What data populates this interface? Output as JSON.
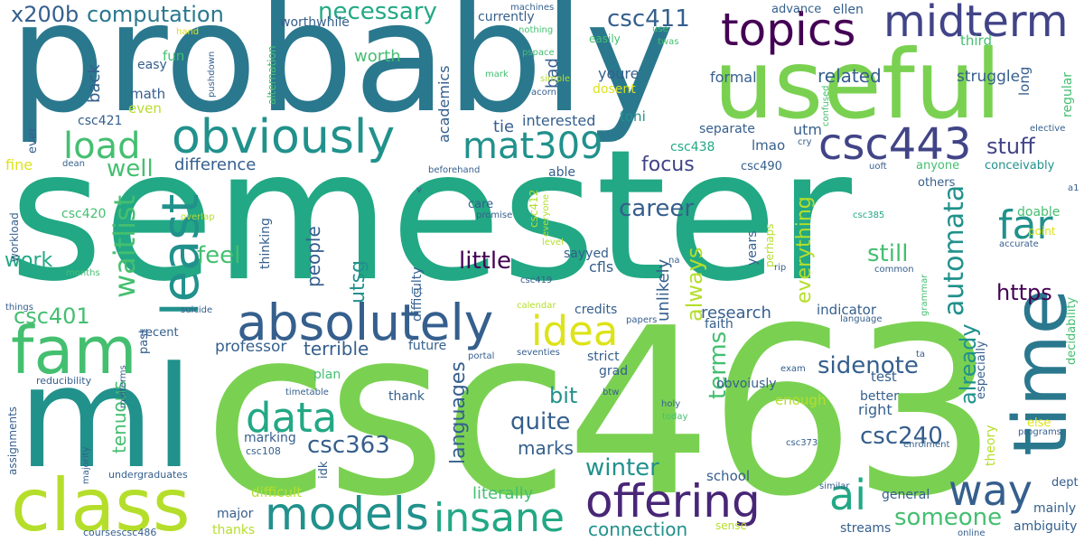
{
  "palette": {
    "yellow": "#dde318",
    "lime": "#b5de2b",
    "green": "#7ad151",
    "mint": "#44bf70",
    "teal": "#22a884",
    "cyan": "#21918c",
    "blue": "#2a788e",
    "slate": "#355f8d",
    "indigo": "#414487",
    "purple": "#482677",
    "violet": "#440154"
  },
  "words": {
    "semester": "semester",
    "csc463": "csc463",
    "probably": "probably",
    "useful": "useful",
    "ml": "ml",
    "fam": "fam",
    "class": "class",
    "time": "time",
    "absolutely": "absolutely",
    "obviously": "obviously",
    "topics": "topics",
    "midterm": "midterm",
    "csc443": "csc443",
    "mat309": "mat309",
    "models": "models",
    "insane": "insane",
    "offering": "offering",
    "least": "least",
    "data": "data",
    "idea": "idea",
    "ai": "ai",
    "way": "way",
    "far": "far",
    "load": "load",
    "computation": "computation",
    "necessary": "necessary",
    "x200b": "x200b",
    "csc411": "csc411",
    "waitlist": "waitlist",
    "automata": "automata",
    "csc401": "csc401",
    "csc363": "csc363",
    "csc240": "csc240",
    "sidenote": "sidenote",
    "winter": "winter",
    "someone": "someone",
    "connection": "connection",
    "little": "little",
    "career": "career",
    "https": "https",
    "well": "well",
    "feel": "feel",
    "still": "still",
    "stuff": "stuff",
    "terms": "terms",
    "always": "always",
    "quite": "quite",
    "bit": "bit",
    "marks": "marks",
    "focus": "focus",
    "difference": "difference",
    "related": "related",
    "work": "work",
    "utsg": "utsg",
    "languages": "languages",
    "already": "already",
    "literally": "literally",
    "people": "people",
    "tenuous": "tenuous",
    "everything": "everything",
    "unlikely": "unlikely",
    "research": "research",
    "terrible": "terrible",
    "professor": "professor",
    "struggle": "struggle",
    "worth": "worth",
    "back": "back",
    "interested": "interested",
    "toni": "toni",
    "tie": "tie",
    "academics": "academics",
    "bad": "bad",
    "youre": "youre",
    "dosent": "dosent",
    "formal": "formal",
    "currently": "currently",
    "worthwhile": "worthwhile",
    "advance": "advance",
    "ellen": "ellen",
    "third": "third",
    "long": "long",
    "regular": "regular",
    "fun": "fun",
    "easy": "easy",
    "math": "math",
    "even": "even",
    "csc421": "csc421",
    "ever": "ever",
    "fine": "fine",
    "dean": "dean",
    "hand": "hand",
    "pushdown": "pushdown",
    "alternation": "alternation",
    "machines": "machines",
    "nothing": "nothing",
    "pspace": "pspace",
    "mark": "mark",
    "simple": "simple",
    "acorn": "acorn",
    "easily": "easily",
    "use": "use",
    "twas": "twas",
    "confused": "confused",
    "elective": "elective",
    "cry": "cry",
    "utm": "utm",
    "lmao": "lmao",
    "separate": "separate",
    "csc438": "csc438",
    "csc490": "csc490",
    "conceivably": "conceivably",
    "anyone": "anyone",
    "uoft": "uoft",
    "others": "others",
    "a1": "a1",
    "doable": "doable",
    "accurate": "accurate",
    "point": "point",
    "csc385": "csc385",
    "common": "common",
    "grammar": "grammar",
    "csc420": "csc420",
    "workload": "workload",
    "months": "months",
    "things": "things",
    "recent": "recent",
    "suicide": "suicide",
    "past": "past",
    "overlap": "overlap",
    "thinking": "thinking",
    "difficulty": "difficulty",
    "csc412": "csc412",
    "everyone": "everyone",
    "promise": "promise",
    "care": "care",
    "able": "able",
    "beforehand": "beforehand",
    "v": "v",
    "level": "level",
    "sayyed": "sayyed",
    "csc419": "csc419",
    "cfls": "cfls",
    "na": "na",
    "years": "years",
    "perhaps": "perhaps",
    "rip": "rip",
    "lot": "lot",
    "calendar": "calendar",
    "credits": "credits",
    "papers": "papers",
    "faith": "faith",
    "indicator": "indicator",
    "language": "language",
    "future": "future",
    "plan": "plan",
    "strict": "strict",
    "grad": "grad",
    "portal": "portal",
    "seventies": "seventies",
    "thank": "thank",
    "btw": "btw",
    "exam": "exam",
    "ta": "ta",
    "holy": "holy",
    "today": "today",
    "enough": "enough",
    "test": "test",
    "better": "better",
    "right": "right",
    "especially": "especially",
    "decidability": "decidability",
    "theory": "theory",
    "else": "else",
    "programs": "programs",
    "csc373": "csc373",
    "enrolment": "enrolment",
    "dept": "dept",
    "school": "school",
    "obvoiusly": "obvoiusly",
    "general": "general",
    "mainly": "mainly",
    "similar": "similar",
    "streams": "streams",
    "ambiguity": "ambiguity",
    "sense": "sense",
    "online": "online",
    "reducibility": "reducibility",
    "midterms": "midterms",
    "timetable": "timetable",
    "assignments": "assignments",
    "majority": "majority",
    "undergraduates": "undergraduates",
    "csc108": "csc108",
    "marking": "marking",
    "idk": "idk",
    "difficult": "difficult",
    "major": "major",
    "thanks": "thanks",
    "coursescsc486": "coursescsc486"
  }
}
